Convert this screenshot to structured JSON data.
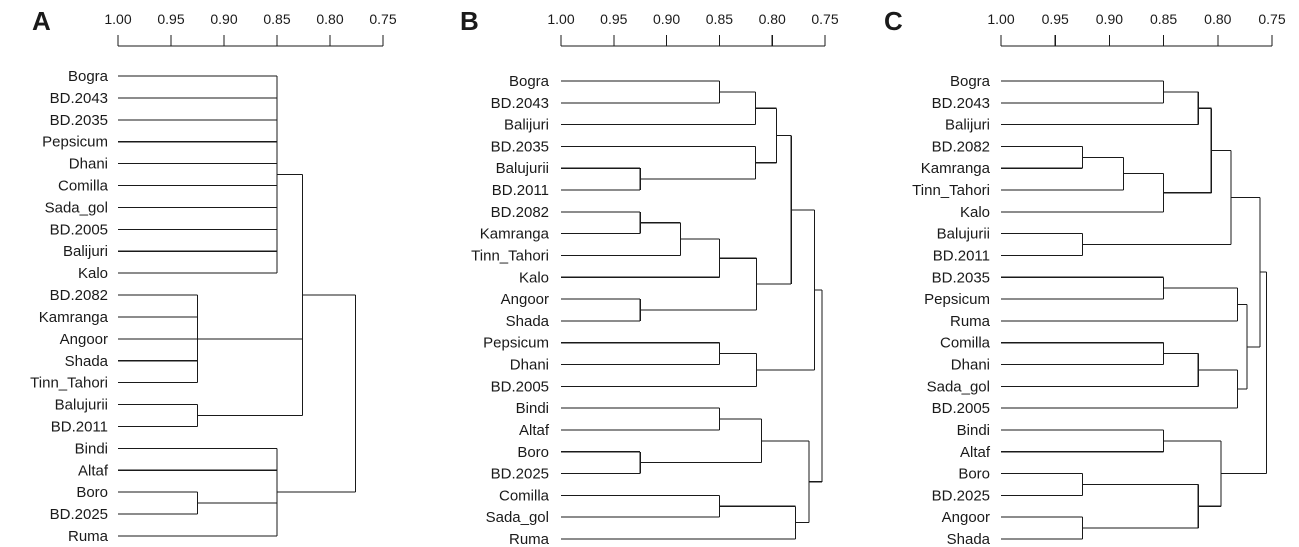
{
  "figure": {
    "panels": [
      {
        "letter": "A",
        "scale": {
          "from": 1.0,
          "to": 0.75,
          "ticks": [
            "1.00",
            "0.95",
            "0.90",
            "0.85",
            "0.80",
            "0.75"
          ]
        },
        "leaves": [
          "Bogra",
          "BD.2043",
          "BD.2035",
          "Pepsicum",
          "Dhani",
          "Comilla",
          "Sada_gol",
          "BD.2005",
          "Balijuri",
          "Kalo",
          "BD.2082",
          "Kamranga",
          "Angoor",
          "Shada",
          "Tinn_Tahori",
          "Balujurii",
          "BD.2011",
          "Bindi",
          "Altaf",
          "Boro",
          "BD.2025",
          "Ruma"
        ],
        "tree": [
          0.776,
          [
            0.826,
            [
              0.85,
              "Bogra",
              "BD.2043",
              "BD.2035",
              "Pepsicum",
              "Dhani",
              "Comilla",
              "Sada_gol",
              "BD.2005",
              "Balijuri",
              "Kalo"
            ],
            [
              0.925,
              "BD.2082",
              "Kamranga",
              "Angoor",
              "Shada",
              "Tinn_Tahori"
            ],
            [
              0.925,
              "Balujurii",
              "BD.2011"
            ]
          ],
          [
            0.85,
            "Bindi",
            "Altaf",
            [
              0.925,
              "Boro",
              "BD.2025"
            ],
            "Ruma"
          ]
        ]
      },
      {
        "letter": "B",
        "scale": {
          "from": 1.0,
          "to": 0.75,
          "ticks": [
            "1.00",
            "0.95",
            "0.90",
            "0.85",
            "0.80",
            "0.75"
          ]
        },
        "leaves": [
          "Bogra",
          "BD.2043",
          "Balijuri",
          "BD.2035",
          "Balujurii",
          "BD.2011",
          "BD.2082",
          "Kamranga",
          "Tinn_Tahori",
          "Kalo",
          "Angoor",
          "Shada",
          "Pepsicum",
          "Dhani",
          "BD.2005",
          "Bindi",
          "Altaf",
          "Boro",
          "BD.2025",
          "Comilla",
          "Sada_gol",
          "Ruma"
        ],
        "tree": [
          0.753,
          [
            0.76,
            [
              0.782,
              [
                0.796,
                [
                  0.816,
                  [
                    0.85,
                    "Bogra",
                    "BD.2043"
                  ],
                  "Balijuri"
                ],
                [
                  0.816,
                  "BD.2035",
                  [
                    0.925,
                    "Balujurii",
                    "BD.2011"
                  ]
                ]
              ],
              [
                0.815,
                [
                  0.85,
                  [
                    0.887,
                    [
                      0.925,
                      "BD.2082",
                      "Kamranga"
                    ],
                    "Tinn_Tahori"
                  ],
                  "Kalo"
                ],
                [
                  0.925,
                  "Angoor",
                  "Shada"
                ]
              ]
            ],
            [
              0.815,
              [
                0.85,
                "Pepsicum",
                "Dhani"
              ],
              "BD.2005"
            ]
          ],
          [
            0.765,
            [
              0.81,
              [
                0.85,
                "Bindi",
                "Altaf"
              ],
              [
                0.925,
                "Boro",
                "BD.2025"
              ]
            ],
            [
              0.778,
              [
                0.85,
                "Comilla",
                "Sada_gol"
              ],
              "Ruma"
            ]
          ]
        ]
      },
      {
        "letter": "C",
        "scale": {
          "from": 1.0,
          "to": 0.75,
          "ticks": [
            "1.00",
            "0.95",
            "0.90",
            "0.85",
            "0.80",
            "0.75"
          ]
        },
        "leaves": [
          "Bogra",
          "BD.2043",
          "Balijuri",
          "BD.2082",
          "Kamranga",
          "Tinn_Tahori",
          "Kalo",
          "Balujurii",
          "BD.2011",
          "BD.2035",
          "Pepsicum",
          "Ruma",
          "Comilla",
          "Dhani",
          "Sada_gol",
          "BD.2005",
          "Bindi",
          "Altaf",
          "Boro",
          "BD.2025",
          "Angoor",
          "Shada"
        ],
        "tree": [
          0.755,
          [
            0.761,
            [
              0.788,
              [
                0.806,
                [
                  0.818,
                  [
                    0.85,
                    "Bogra",
                    "BD.2043"
                  ],
                  "Balijuri"
                ],
                [
                  0.85,
                  [
                    0.887,
                    [
                      0.925,
                      "BD.2082",
                      "Kamranga"
                    ],
                    "Tinn_Tahori"
                  ],
                  "Kalo"
                ]
              ],
              [
                0.925,
                "Balujurii",
                "BD.2011"
              ]
            ],
            [
              0.773,
              [
                0.782,
                [
                  0.85,
                  "BD.2035",
                  "Pepsicum"
                ],
                "Ruma"
              ],
              [
                0.782,
                [
                  0.818,
                  [
                    0.85,
                    "Comilla",
                    "Dhani"
                  ],
                  "Sada_gol"
                ],
                "BD.2005"
              ]
            ]
          ],
          [
            0.797,
            [
              0.85,
              "Bindi",
              "Altaf"
            ],
            [
              0.818,
              [
                0.925,
                "Boro",
                "BD.2025"
              ],
              [
                0.925,
                "Angoor",
                "Shada"
              ]
            ]
          ]
        ]
      }
    ]
  }
}
